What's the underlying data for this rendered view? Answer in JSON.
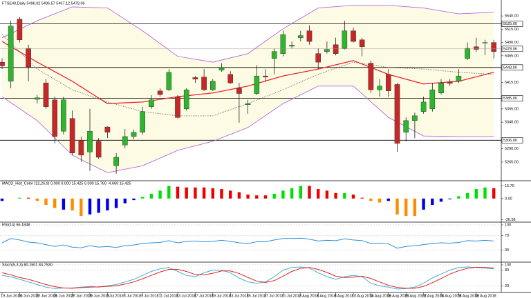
{
  "chart_data": [
    {
      "type": "candlestick",
      "title": "FTSE40,Daily 5496.02 5496.57 5467.12 5478.06",
      "categories": [
        "19 Jun 2018",
        null,
        "20 Jun 2018",
        null,
        "22 Jun 2018",
        null,
        "26 Jun 2018",
        null,
        "27 Jun 2018",
        null,
        "29 Jun 2018",
        null,
        "3 Jul 2018",
        null,
        "5 Jul 2018",
        null,
        "9 Jul 2018",
        null,
        "11 Jul 2018",
        null,
        "13 Jul 2018",
        null,
        "17 Jul 2018",
        null,
        "19 Jul 2018",
        null,
        "23 Jul 2018",
        null,
        "25 Jul 2018",
        null,
        "27 Jul 2018",
        null,
        "31 Jul 2018",
        null,
        "2 Aug 2018",
        null,
        "6 Aug 2018",
        null,
        "8 Aug 2018",
        null,
        "10 Aug 2018",
        null,
        "14 Aug 2018",
        null,
        "16 Aug 2018",
        null,
        "20 Aug 2018",
        null,
        "22 Aug 2018",
        null,
        "24 Aug 2018",
        null,
        "28 Aug 2018",
        null,
        "30 Aug 2018",
        null,
        null
      ],
      "open": [
        5453,
        5417,
        5534,
        5479,
        5383,
        5414,
        5382,
        5323,
        5347,
        5306,
        5284,
        5304,
        5331,
        5258,
        5297,
        5313,
        5321,
        5369,
        5399,
        5401,
        5388,
        5365,
        5424,
        5425,
        5401,
        5438,
        5430,
        5404,
        5373,
        5394,
        5427,
        5460,
        5469,
        5483,
        5499,
        5512,
        5469,
        5473,
        5486,
        5479,
        5512,
        5495,
        5451,
        5401,
        5430,
        5411,
        5321,
        5343,
        5360,
        5365,
        5395,
        5416,
        5417,
        5460,
        5482,
        5489,
        5490
      ],
      "high": [
        5460,
        5531,
        5538,
        5486,
        5391,
        5421,
        5388,
        5388,
        5362,
        5313,
        5365,
        5310,
        5332,
        5282,
        5327,
        5326,
        5369,
        5391,
        5404,
        5440,
        5391,
        5404,
        5427,
        5440,
        5421,
        5451,
        5436,
        5414,
        5382,
        5447,
        5440,
        5479,
        5512,
        5492,
        5512,
        5522,
        5479,
        5492,
        5499,
        5531,
        5518,
        5499,
        5456,
        5421,
        5440,
        5414,
        5349,
        5358,
        5388,
        5414,
        5421,
        5421,
        5440,
        5490,
        5499,
        5495,
        5495
      ],
      "low": [
        5440,
        5404,
        5490,
        5417,
        5375,
        5365,
        5300,
        5317,
        5278,
        5265,
        5248,
        5271,
        5310,
        5243,
        5291,
        5308,
        5317,
        5365,
        5388,
        5399,
        5347,
        5362,
        5414,
        5399,
        5399,
        5435,
        5412,
        5339,
        5356,
        5391,
        5417,
        5430,
        5464,
        5479,
        5492,
        5486,
        5440,
        5469,
        5466,
        5477,
        5490,
        5464,
        5395,
        5388,
        5388,
        5284,
        5304,
        5310,
        5356,
        5360,
        5392,
        5408,
        5414,
        5457,
        5472,
        5466,
        5460
      ],
      "close": [
        5446,
        5521,
        5495,
        5444,
        5386,
        5369,
        5313,
        5382,
        5282,
        5278,
        5323,
        5274,
        5321,
        5274,
        5313,
        5321,
        5360,
        5382,
        5392,
        5434,
        5349,
        5401,
        5421,
        5401,
        5417,
        5443,
        5414,
        5394,
        5375,
        5427,
        5425,
        5473,
        5505,
        5485,
        5503,
        5492,
        5453,
        5477,
        5469,
        5512,
        5492,
        5482,
        5401,
        5408,
        5399,
        5300,
        5343,
        5352,
        5378,
        5401,
        5414,
        5413,
        5427,
        5479,
        5477,
        5490,
        5473
      ],
      "up_color": "#2db52d",
      "down_color": "#c62828",
      "overlays": {
        "x": [
          0,
          4,
          8,
          12,
          16,
          20,
          24,
          28,
          32,
          36,
          40,
          44,
          48,
          52,
          56
        ],
        "fill": "#fdfbe4",
        "series": [
          {
            "color": "#b468e0",
            "values": [
              5499,
              5531,
              5557,
              5555,
              5512,
              5464,
              5453,
              5469,
              5516,
              5555,
              5560,
              5560,
              5555,
              5544,
              5547
            ]
          },
          {
            "color": "#b468e0",
            "values": [
              5388,
              5343,
              5278,
              5245,
              5258,
              5287,
              5304,
              5330,
              5375,
              5408,
              5408,
              5349,
              5314,
              5313,
              5313
            ]
          },
          {
            "color": "#e8262c",
            "values": [
              5492,
              5453,
              5417,
              5375,
              5378,
              5388,
              5395,
              5408,
              5427,
              5440,
              5456,
              5430,
              5412,
              5417,
              5434
            ]
          },
          {
            "color": "#555555",
            "dash": "1,1.5",
            "values": [
              5505,
              5440,
              5401,
              5378,
              5360,
              5352,
              5352,
              5375,
              5401,
              5430,
              5453,
              5443,
              5440,
              5434,
              5430
            ]
          }
        ]
      },
      "levels": [
        {
          "value": 5525,
          "label": "5525.00"
        },
        {
          "value": 5443,
          "label": "5443.00"
        },
        {
          "value": 5385,
          "label": "5385.00"
        },
        {
          "value": 5306,
          "label": "5306.00"
        }
      ],
      "last": {
        "value": 5478.06,
        "label": "5478.06"
      },
      "ylim": [
        5235,
        5570
      ],
      "yticks": [
        {
          "value": 5540,
          "label": "5540.00"
        },
        {
          "value": 5515,
          "label": "5515.00"
        },
        {
          "value": 5490,
          "label": "5490.00"
        },
        {
          "value": 5465,
          "label": "5465.00"
        },
        {
          "value": 5415,
          "label": "5415.00"
        },
        {
          "value": 5365,
          "label": "5365.00"
        },
        {
          "value": 5340,
          "label": "5340.00"
        },
        {
          "value": 5290,
          "label": "5290.00"
        },
        {
          "value": 5265,
          "label": "5265.00"
        }
      ]
    },
    {
      "type": "bar",
      "title": "MACD_Hist_Color (12,26,9) 0.000 0.000 15.425 0.000 15.760 -4.669 15.425",
      "values": [
        -3,
        0,
        1,
        1,
        -3,
        -8,
        -12,
        -14,
        -15,
        -22,
        -20,
        -18,
        -15,
        -12,
        -6,
        -2,
        2,
        6,
        10,
        16,
        15,
        14,
        14,
        14,
        13,
        12,
        10,
        8,
        5,
        4,
        4,
        6,
        10,
        13,
        16,
        16,
        12,
        10,
        7,
        7,
        5,
        1,
        -3,
        -5,
        -3,
        -20,
        -22,
        -22,
        -14,
        -8,
        -4,
        -1,
        3,
        7,
        12,
        14,
        13
      ],
      "colors": [
        "#0000ee",
        "#0000ee",
        "#00e000",
        "#ee0000",
        "#ff8c00",
        "#ff8c00",
        "#ff8c00",
        "#0000ee",
        "#ff8c00",
        "#ff8c00",
        "#0000ee",
        "#0000ee",
        "#0000ee",
        "#0000ee",
        "#0000ee",
        "#0000ee",
        "#00e000",
        "#00e000",
        "#00e000",
        "#00e000",
        "#ee0000",
        "#ee0000",
        "#ee0000",
        "#ee0000",
        "#ee0000",
        "#ee0000",
        "#ee0000",
        "#ee0000",
        "#ee0000",
        "#ee0000",
        "#ee0000",
        "#00e000",
        "#00e000",
        "#00e000",
        "#00e000",
        "#ee0000",
        "#ee0000",
        "#ee0000",
        "#ee0000",
        "#00e000",
        "#ee0000",
        "#ee0000",
        "#ff8c00",
        "#ff8c00",
        "#0000ee",
        "#ff8c00",
        "#ff8c00",
        "#ff8c00",
        "#0000ee",
        "#0000ee",
        "#0000ee",
        "#0000ee",
        "#00e000",
        "#00e000",
        "#00e000",
        "#00e000",
        "#ee0000"
      ],
      "ylim": [
        -28,
        19
      ],
      "yticks": [
        {
          "value": 15.76,
          "label": "15.76"
        },
        {
          "value": 0,
          "label": "0.00"
        },
        {
          "value": -26.58,
          "label": "-26.58"
        }
      ]
    },
    {
      "type": "line",
      "title": "RSI(14) 56.1848",
      "series": [
        {
          "color": "#2f8fd8",
          "values": [
            50,
            62,
            58,
            52,
            50,
            45,
            40,
            44,
            38,
            36,
            42,
            38,
            40,
            37,
            42,
            44,
            48,
            50,
            51,
            56,
            50,
            54,
            55,
            53,
            54,
            57,
            54,
            50,
            48,
            53,
            53,
            58,
            62,
            62,
            63,
            60,
            55,
            57,
            56,
            61,
            58,
            56,
            48,
            49,
            47,
            35,
            40,
            42,
            45,
            48,
            50,
            49,
            51,
            56,
            55,
            57,
            55
          ]
        }
      ],
      "ylim": [
        0,
        100
      ],
      "yticks": [
        100,
        70,
        30
      ]
    },
    {
      "type": "line",
      "title": "Stoch(5,3,3) 80.1501 84.7530",
      "series": [
        {
          "color": "#3fb0d0",
          "values": [
            60,
            55,
            45,
            35,
            25,
            15,
            10,
            12,
            12,
            15,
            18,
            15,
            20,
            25,
            35,
            45,
            60,
            75,
            85,
            90,
            75,
            60,
            55,
            70,
            80,
            80,
            70,
            50,
            35,
            30,
            35,
            55,
            80,
            90,
            92,
            88,
            70,
            55,
            45,
            55,
            60,
            55,
            30,
            20,
            15,
            8,
            10,
            15,
            30,
            50,
            65,
            80,
            90,
            92,
            90,
            88,
            85
          ]
        },
        {
          "color": "#e02020",
          "values": [
            70,
            62,
            52,
            45,
            35,
            25,
            17,
            12,
            11,
            13,
            15,
            16,
            18,
            20,
            27,
            35,
            47,
            60,
            73,
            83,
            83,
            75,
            63,
            62,
            68,
            77,
            77,
            67,
            52,
            38,
            33,
            40,
            57,
            75,
            87,
            90,
            83,
            71,
            57,
            52,
            53,
            57,
            48,
            35,
            22,
            14,
            11,
            11,
            18,
            32,
            48,
            65,
            78,
            87,
            91,
            90,
            88
          ]
        }
      ],
      "ylim": [
        0,
        100
      ],
      "yticks": [
        100,
        80,
        20
      ]
    }
  ]
}
